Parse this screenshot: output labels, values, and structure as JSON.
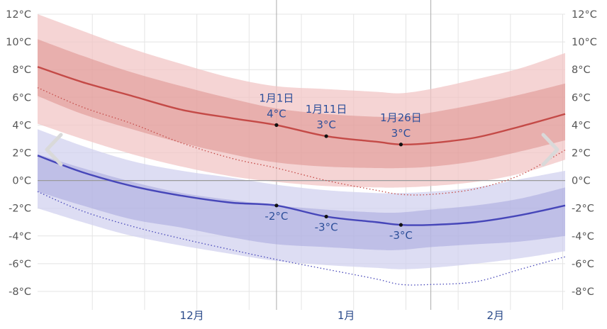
{
  "chart_data": {
    "type": "area",
    "y_unit": "°C",
    "ylim": [
      -8,
      12
    ],
    "yticks": [
      12,
      10,
      8,
      6,
      4,
      2,
      0,
      -2,
      -4,
      -6,
      -8
    ],
    "ytick_labels": [
      "12°C",
      "10°C",
      "8°C",
      "6°C",
      "4°C",
      "2°C",
      "0°C",
      "-2°C",
      "-4°C",
      "-6°C",
      "-8°C"
    ],
    "x_domain": [
      "11月14日",
      "2月28日"
    ],
    "month_labels": [
      {
        "date": "12月15日",
        "label": "12月"
      },
      {
        "date": "1月15日",
        "label": "1月"
      },
      {
        "date": "2月14日",
        "label": "2月"
      }
    ],
    "month_boundaries": [
      "1月1日",
      "2月1日"
    ],
    "grid": true,
    "legend": "none",
    "colors": {
      "high_line": "#c44a47",
      "high_band_inner": "#dc8f8d",
      "high_band_outer": "#f2c6c5",
      "low_line": "#4646b9",
      "low_band_inner": "#a6a6dd",
      "low_band_outer": "#d2d2ef",
      "gridline": "#e4e4e4",
      "month_line": "#b8b8b8",
      "zero_line": "#9a9a9a",
      "annotation": "#2d4f9a"
    },
    "x_dates": [
      "11月14日",
      "11月23日",
      "12月3日",
      "12月13日",
      "12月23日",
      "1月1日",
      "1月11日",
      "1月21日",
      "1月26日",
      "2月1日",
      "2月10日",
      "2月19日",
      "2月28日"
    ],
    "series": [
      {
        "key": "high_p90",
        "values": [
          12.0,
          10.8,
          9.5,
          8.4,
          7.4,
          6.8,
          6.6,
          6.4,
          6.3,
          6.6,
          7.3,
          8.1,
          9.2
        ]
      },
      {
        "key": "high_p75",
        "values": [
          10.2,
          9.0,
          7.8,
          6.8,
          5.9,
          5.2,
          4.8,
          4.6,
          4.6,
          4.9,
          5.5,
          6.2,
          7.0
        ]
      },
      {
        "key": "high_avg",
        "values": [
          8.2,
          7.1,
          6.1,
          5.1,
          4.5,
          4.0,
          3.2,
          2.8,
          2.6,
          2.7,
          3.1,
          3.9,
          4.8
        ]
      },
      {
        "key": "high_p25",
        "values": [
          6.1,
          4.8,
          3.7,
          2.7,
          1.9,
          1.3,
          1.0,
          0.9,
          0.9,
          1.0,
          1.4,
          2.1,
          2.9
        ]
      },
      {
        "key": "high_p10",
        "values": [
          4.1,
          3.0,
          1.9,
          1.0,
          0.3,
          -0.1,
          -0.4,
          -0.5,
          -0.5,
          -0.4,
          -0.1,
          0.5,
          1.5
        ]
      },
      {
        "key": "low_p90",
        "values": [
          3.7,
          2.5,
          1.4,
          0.7,
          0.2,
          -0.3,
          -0.7,
          -0.9,
          -0.9,
          -0.8,
          -0.5,
          0.1,
          0.7
        ]
      },
      {
        "key": "low_p75",
        "values": [
          1.9,
          0.9,
          -0.1,
          -0.9,
          -1.4,
          -1.8,
          -2.1,
          -2.3,
          -2.3,
          -2.1,
          -1.8,
          -1.3,
          -0.5
        ]
      },
      {
        "key": "low_avg",
        "values": [
          1.8,
          0.6,
          -0.4,
          -1.1,
          -1.6,
          -1.8,
          -2.6,
          -3.0,
          -3.2,
          -3.2,
          -3.0,
          -2.5,
          -1.8
        ]
      },
      {
        "key": "low_p25",
        "values": [
          -0.8,
          -1.8,
          -2.8,
          -3.4,
          -4.1,
          -4.6,
          -4.8,
          -5.0,
          -5.0,
          -4.8,
          -4.6,
          -4.4,
          -4.0
        ]
      },
      {
        "key": "low_p10",
        "values": [
          -2.0,
          -3.0,
          -4.0,
          -4.7,
          -5.3,
          -5.8,
          -6.1,
          -6.3,
          -6.4,
          -6.3,
          -6.0,
          -5.6,
          -5.1
        ]
      },
      {
        "key": "high_min",
        "values": [
          6.7,
          5.3,
          4.1,
          2.7,
          1.6,
          0.9,
          0.0,
          -0.7,
          -1.0,
          -1.0,
          -0.6,
          0.4,
          2.2
        ]
      },
      {
        "key": "low_min",
        "values": [
          -0.8,
          -2.2,
          -3.3,
          -4.2,
          -5.0,
          -5.7,
          -6.4,
          -7.1,
          -7.5,
          -7.5,
          -7.3,
          -6.4,
          -5.5
        ]
      }
    ],
    "annotations": [
      {
        "series": "high_avg",
        "date": "1月1日",
        "date_label": "1月1日",
        "value_label": "4°C"
      },
      {
        "series": "high_avg",
        "date": "1月11日",
        "date_label": "1月11日",
        "value_label": "3°C"
      },
      {
        "series": "high_avg",
        "date": "1月26日",
        "date_label": "1月26日",
        "value_label": "3°C"
      },
      {
        "series": "low_avg",
        "date": "1月1日",
        "value_label": "-2°C"
      },
      {
        "series": "low_avg",
        "date": "1月11日",
        "value_label": "-3°C"
      },
      {
        "series": "low_avg",
        "date": "1月26日",
        "value_label": "-3°C"
      }
    ]
  },
  "nav": {
    "prev_icon": "chevron-left-icon",
    "next_icon": "chevron-right-icon"
  }
}
